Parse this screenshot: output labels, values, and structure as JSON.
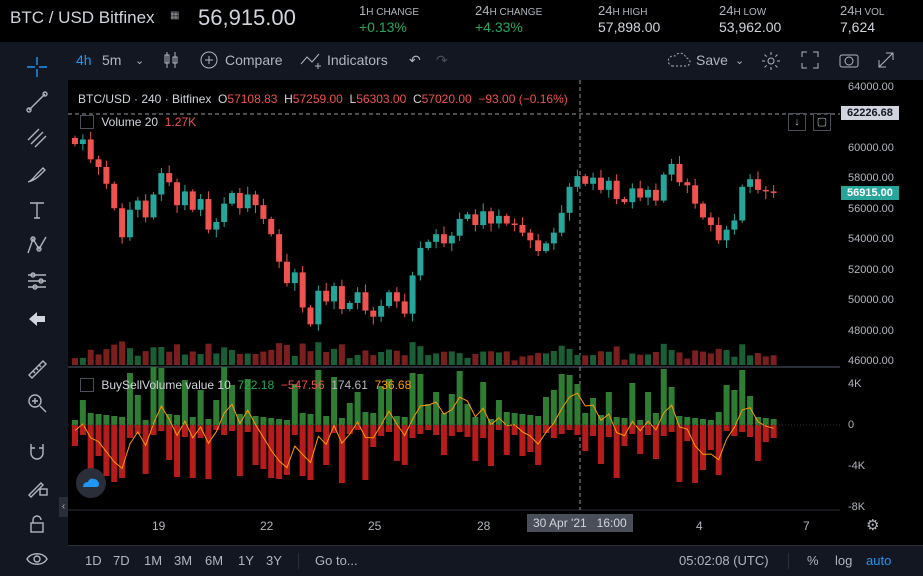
{
  "header": {
    "symbol": "BTC / USD Bitfinex",
    "price": "56,915.00",
    "stats": [
      {
        "num": "1",
        "unit": "H CHANGE",
        "value": "+0.13%"
      },
      {
        "num": "24",
        "unit": "H CHANGE",
        "value": "+4.33%"
      },
      {
        "num": "24",
        "unit": "H HIGH",
        "value": "57,898.00"
      },
      {
        "num": "24",
        "unit": "H LOW",
        "value": "53,962.00"
      },
      {
        "num": "24",
        "unit": "H VOL",
        "value": "7,624"
      }
    ]
  },
  "toolbar": {
    "interval": "4h",
    "interval2": "5m",
    "compare": "Compare",
    "indicators": "Indicators",
    "save": "Save"
  },
  "legend": {
    "title": "BTC/USD · 240 · Bitfinex",
    "o_label": "O",
    "o": "57108.83",
    "h_label": "H",
    "h": "57259.00",
    "l_label": "L",
    "l": "56303.00",
    "c_label": "C",
    "c": "57020.00",
    "chg": "−93.00 (−0.16%)"
  },
  "volume_legend": {
    "name": "Volume 20",
    "value": "1.27K"
  },
  "bsv_legend": {
    "name": "BuySellVolume value 10",
    "v1": "722.18",
    "v2": "−547.56",
    "v3": "174.61",
    "v4": "736.68"
  },
  "price_axis": [
    "64000.00",
    "62000.00",
    "60000.00",
    "58000.00",
    "56000.00",
    "54000.00",
    "52000.00",
    "50000.00",
    "48000.00",
    "46000.00"
  ],
  "crosshair_price": "62226.68",
  "last_price": "56915.00",
  "ind_axis": [
    "4K",
    "0",
    "-4K",
    "-8K"
  ],
  "time_axis": [
    "19",
    "22",
    "25",
    "28",
    "4",
    "7"
  ],
  "crosshair_time": "30 Apr '21   16:00",
  "bottom": {
    "ranges": [
      "1D",
      "7D",
      "1M",
      "3M",
      "6M",
      "1Y",
      "3Y"
    ],
    "goto": "Go to...",
    "clock": "05:02:08 (UTC)",
    "pct": "%",
    "log": "log",
    "auto": "auto"
  },
  "colors": {
    "up": "#26a69a",
    "down": "#ef5350",
    "accent": "#2196f3",
    "up_text": "#26a65b"
  },
  "chart_data": {
    "type": "candlestick",
    "y_range": [
      45500,
      64500
    ],
    "closes": [
      60200,
      60500,
      59200,
      58700,
      57600,
      56000,
      54100,
      55900,
      56500,
      55400,
      56900,
      58300,
      57700,
      56200,
      57100,
      55900,
      56600,
      54600,
      55100,
      56300,
      57000,
      56000,
      56900,
      56200,
      55300,
      54300,
      52500,
      51100,
      51800,
      49500,
      48400,
      50600,
      49900,
      50900,
      49400,
      49800,
      50500,
      49300,
      48900,
      49600,
      50500,
      49900,
      49100,
      51600,
      53400,
      53800,
      54300,
      53700,
      54200,
      55300,
      55600,
      54900,
      55800,
      55000,
      55500,
      55000,
      54900,
      54400,
      53900,
      53200,
      53700,
      54400,
      55700,
      57400,
      58100,
      57600,
      58000,
      57200,
      57800,
      56600,
      56400,
      57300,
      56700,
      57200,
      56500,
      58200,
      58900,
      57700,
      57500,
      56300,
      55400,
      54900,
      53900,
      54600,
      55200,
      57400,
      57900,
      57200,
      57100,
      57000
    ]
  }
}
